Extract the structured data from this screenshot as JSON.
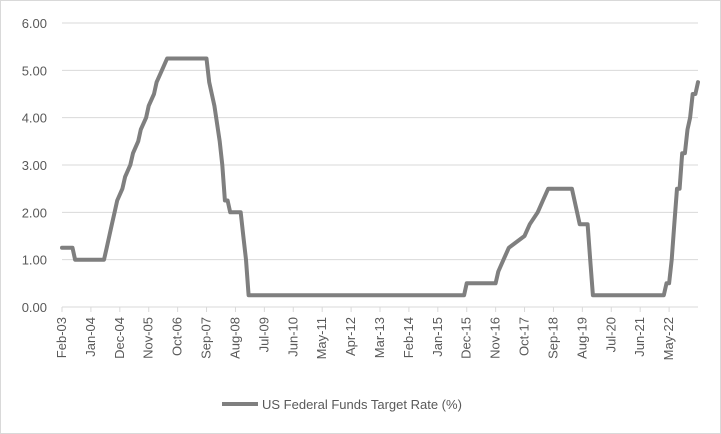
{
  "chart_data": {
    "type": "line",
    "title": "",
    "xlabel": "",
    "ylabel": "",
    "ylim": [
      0,
      6
    ],
    "y_ticks": [
      "0.00",
      "1.00",
      "2.00",
      "3.00",
      "4.00",
      "5.00",
      "6.00"
    ],
    "x_tick_labels": [
      "Feb-03",
      "Jan-04",
      "Dec-04",
      "Nov-05",
      "Oct-06",
      "Sep-07",
      "Aug-08",
      "Jul-09",
      "Jun-10",
      "May-11",
      "Apr-12",
      "Mar-13",
      "Feb-14",
      "Jan-15",
      "Dec-15",
      "Nov-16",
      "Oct-17",
      "Sep-18",
      "Aug-19",
      "Jul-20",
      "Jun-21",
      "May-22"
    ],
    "legend": "bottom",
    "grid": true,
    "colors": {
      "line": "#7f7f7f",
      "grid": "#d9d9d9",
      "text": "#595959"
    },
    "series": [
      {
        "name": "US Federal Funds Target Rate (%)",
        "points": [
          [
            0,
            1.25
          ],
          [
            4,
            1.25
          ],
          [
            5,
            1.0
          ],
          [
            16,
            1.0
          ],
          [
            17,
            1.25
          ],
          [
            18,
            1.5
          ],
          [
            19,
            1.75
          ],
          [
            20,
            2.0
          ],
          [
            21,
            2.25
          ],
          [
            23,
            2.5
          ],
          [
            24,
            2.75
          ],
          [
            26,
            3.0
          ],
          [
            27,
            3.25
          ],
          [
            29,
            3.5
          ],
          [
            30,
            3.75
          ],
          [
            32,
            4.0
          ],
          [
            33,
            4.25
          ],
          [
            35,
            4.5
          ],
          [
            36,
            4.75
          ],
          [
            38,
            5.0
          ],
          [
            40,
            5.25
          ],
          [
            55,
            5.25
          ],
          [
            56,
            4.75
          ],
          [
            57,
            4.5
          ],
          [
            58,
            4.25
          ],
          [
            60,
            3.5
          ],
          [
            61,
            3.0
          ],
          [
            62,
            2.25
          ],
          [
            63,
            2.25
          ],
          [
            64,
            2.0
          ],
          [
            68,
            2.0
          ],
          [
            69,
            1.5
          ],
          [
            70,
            1.0
          ],
          [
            71,
            0.25
          ],
          [
            153,
            0.25
          ],
          [
            154,
            0.5
          ],
          [
            165,
            0.5
          ],
          [
            166,
            0.75
          ],
          [
            168,
            1.0
          ],
          [
            170,
            1.25
          ],
          [
            176,
            1.5
          ],
          [
            178,
            1.75
          ],
          [
            181,
            2.0
          ],
          [
            183,
            2.25
          ],
          [
            185,
            2.5
          ],
          [
            194,
            2.5
          ],
          [
            195,
            2.25
          ],
          [
            196,
            2.0
          ],
          [
            197,
            1.75
          ],
          [
            200,
            1.75
          ],
          [
            201,
            1.0
          ],
          [
            202,
            0.25
          ],
          [
            229,
            0.25
          ],
          [
            230,
            0.5
          ],
          [
            231,
            0.5
          ],
          [
            232,
            1.0
          ],
          [
            233,
            1.75
          ],
          [
            234,
            2.5
          ],
          [
            235,
            2.5
          ],
          [
            236,
            3.25
          ],
          [
            237,
            3.25
          ],
          [
            238,
            3.75
          ],
          [
            239,
            4.0
          ],
          [
            240,
            4.5
          ],
          [
            241,
            4.5
          ],
          [
            242,
            4.75
          ]
        ]
      }
    ]
  }
}
